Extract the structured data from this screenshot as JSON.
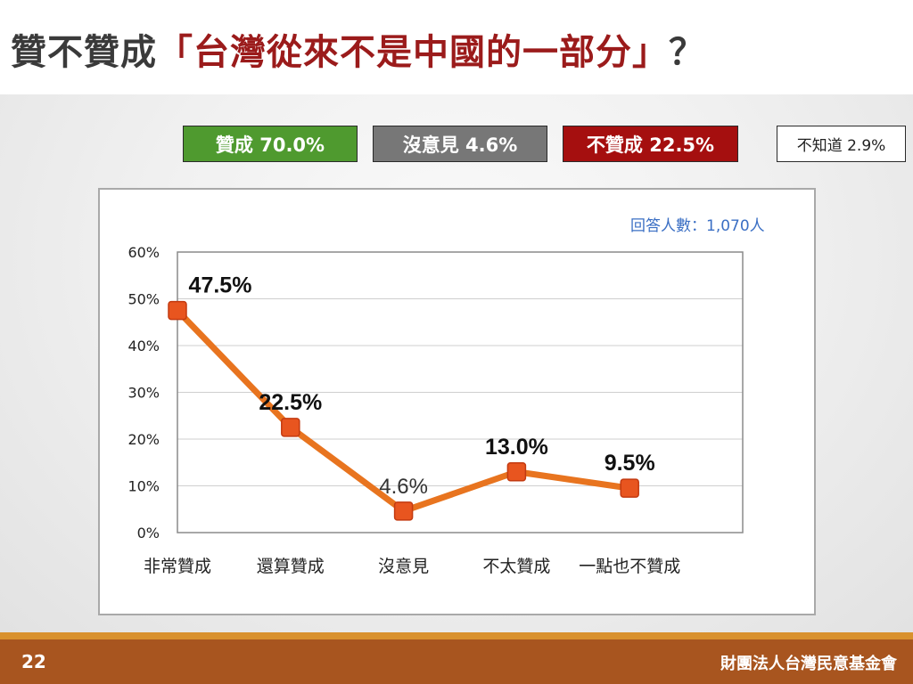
{
  "slide": {
    "title_prefix": "贊不贊成",
    "title_question": "「台灣從來不是中國的一部分」",
    "title_suffix": "？",
    "page_number": "22",
    "organization": "財團法人台灣民意基金會"
  },
  "summary": {
    "agree": "贊成 70.0%",
    "neutral": "沒意見 4.6%",
    "disagree": "不贊成 22.5%",
    "unknown": "不知道 2.9%"
  },
  "colors": {
    "agree": "#4f9a2f",
    "neutral": "#777777",
    "disagree": "#a50f0f",
    "line": "#e8741f",
    "marker": "#e8551f"
  },
  "chart_data": {
    "type": "line",
    "annotation": "回答人數：1,070人",
    "categories": [
      "非常贊成",
      "還算贊成",
      "沒意見",
      "不太贊成",
      "一點也不贊成"
    ],
    "values": [
      47.5,
      22.5,
      4.6,
      13.0,
      9.5
    ],
    "data_labels": [
      "47.5%",
      "22.5%",
      "4.6%",
      "13.0%",
      "9.5%"
    ],
    "ylim": [
      0,
      60
    ],
    "yticks": [
      "0%",
      "10%",
      "20%",
      "30%",
      "40%",
      "50%",
      "60%"
    ],
    "grid": true,
    "xlabel": "",
    "ylabel": ""
  }
}
